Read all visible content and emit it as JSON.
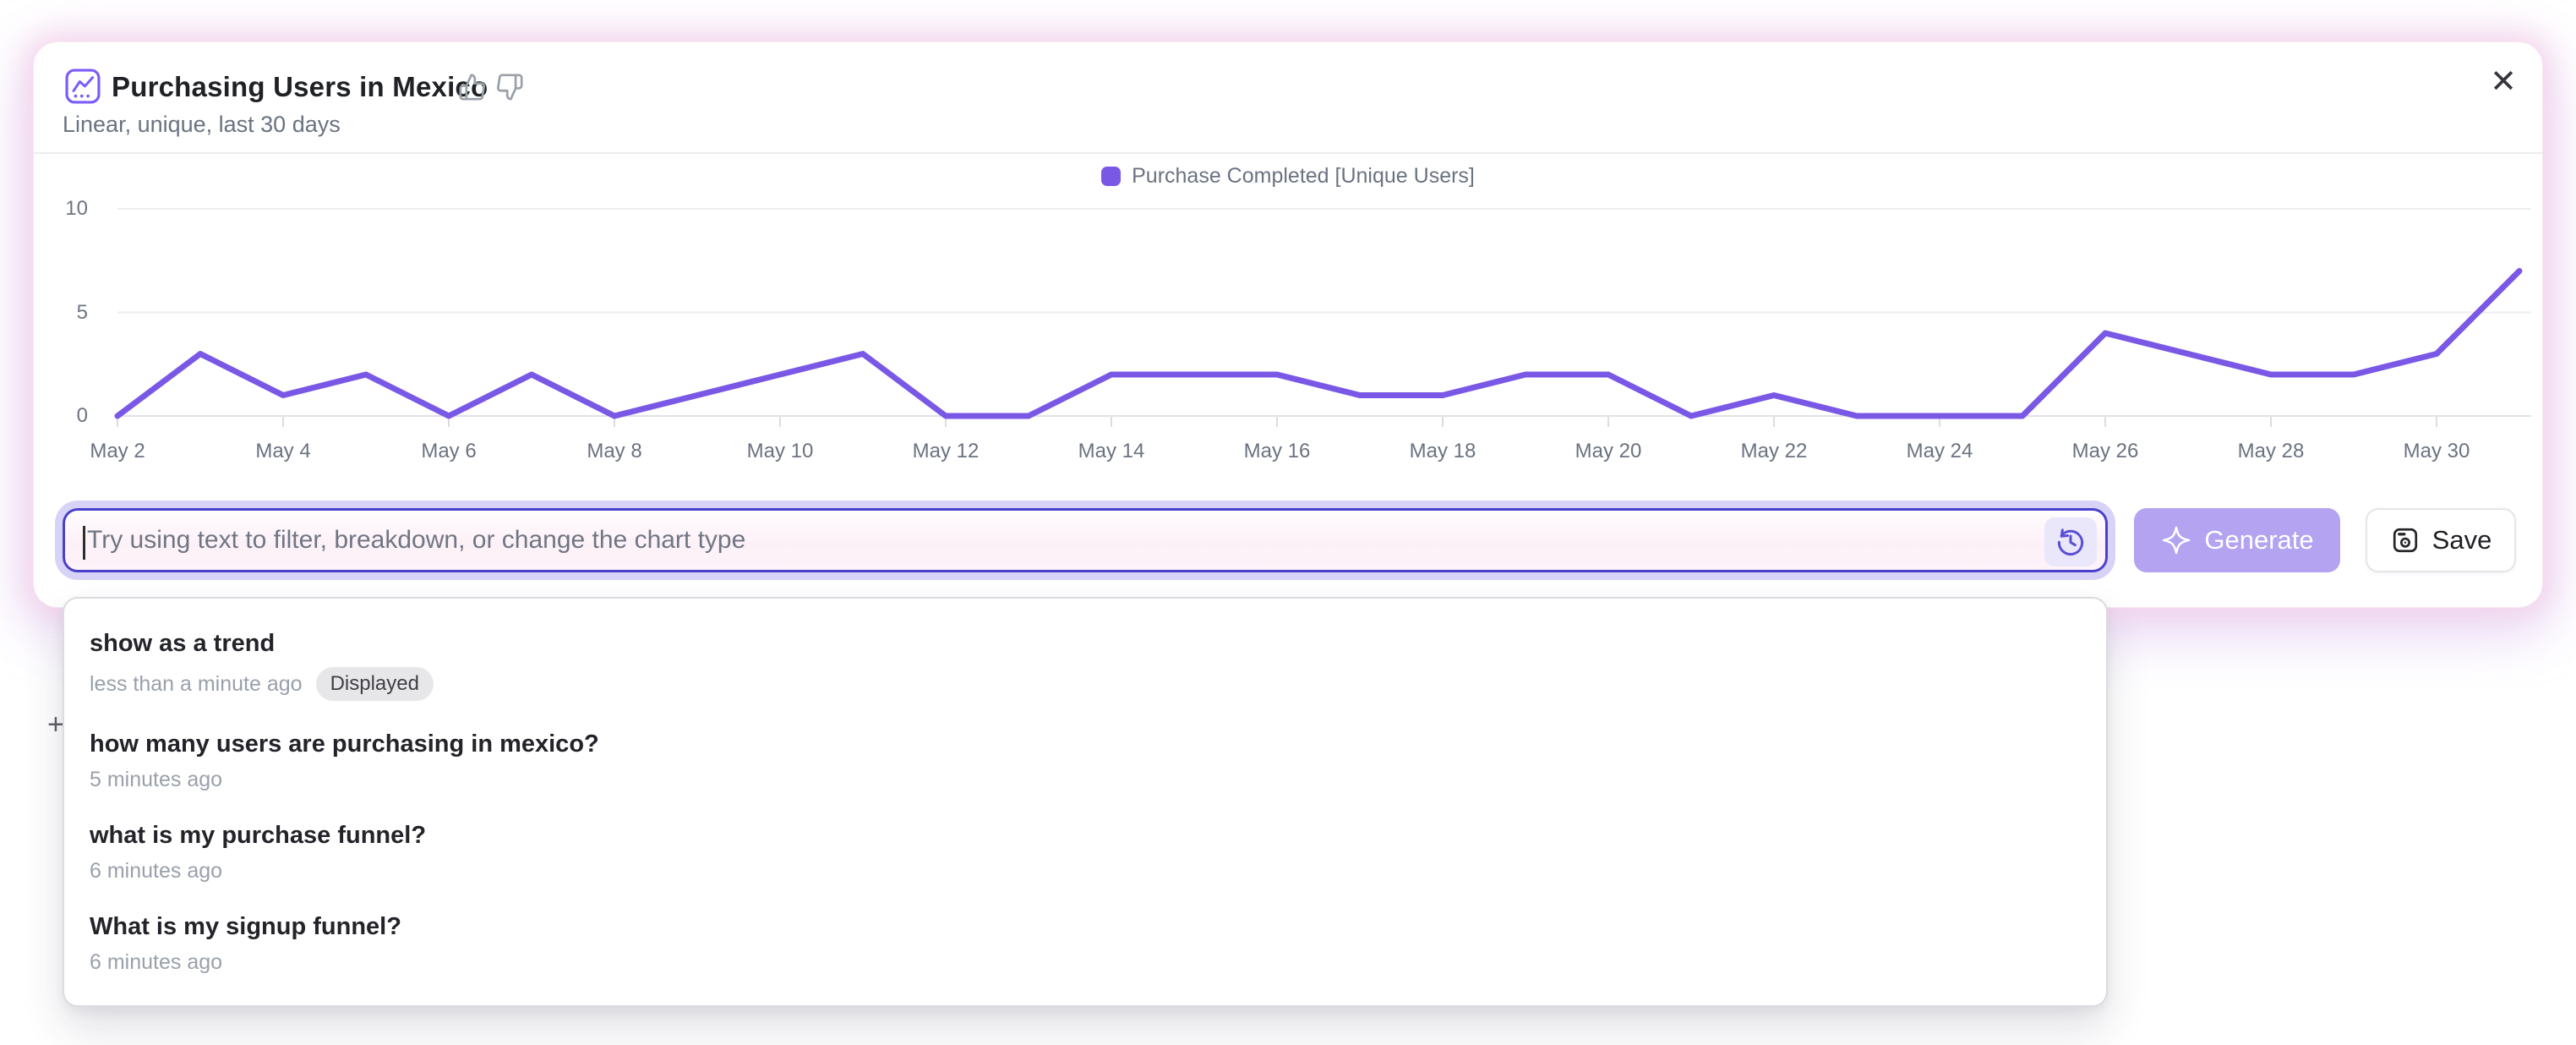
{
  "card": {
    "title": "Purchasing Users in Mexico",
    "subtitle": "Linear, unique, last 30 days",
    "close_icon": "✕"
  },
  "legend": {
    "label": "Purchase Completed [Unique Users]"
  },
  "chart_data": {
    "type": "line",
    "title": "Purchasing Users in Mexico",
    "categories": [
      "May 2",
      "May 3",
      "May 4",
      "May 5",
      "May 6",
      "May 7",
      "May 8",
      "May 9",
      "May 10",
      "May 11",
      "May 12",
      "May 13",
      "May 14",
      "May 15",
      "May 16",
      "May 17",
      "May 18",
      "May 19",
      "May 20",
      "May 21",
      "May 22",
      "May 23",
      "May 24",
      "May 25",
      "May 26",
      "May 27",
      "May 28",
      "May 29",
      "May 30",
      "May 31"
    ],
    "series": [
      {
        "name": "Purchase Completed [Unique Users]",
        "color": "#7a58e6",
        "values": [
          0,
          3,
          1,
          2,
          0,
          2,
          0,
          1,
          2,
          3,
          0,
          0,
          2,
          2,
          2,
          1,
          1,
          2,
          2,
          0,
          1,
          0,
          0,
          0,
          4,
          3,
          2,
          2,
          3,
          7
        ]
      }
    ],
    "x_tick_labels": [
      "May 2",
      "May 4",
      "May 6",
      "May 8",
      "May 10",
      "May 12",
      "May 14",
      "May 16",
      "May 18",
      "May 20",
      "May 22",
      "May 24",
      "May 26",
      "May 28",
      "May 30"
    ],
    "y_ticks": [
      0,
      5,
      10
    ],
    "ylim": [
      0,
      10
    ],
    "grid": "horizontal",
    "legend_position": "top-center"
  },
  "query_bar": {
    "placeholder": "Try using text to filter, breakdown, or change the chart type",
    "value": "",
    "history_icon": "clock-counter-clockwise"
  },
  "actions": {
    "generate_label": "Generate",
    "save_label": "Save"
  },
  "history_dropdown": {
    "items": [
      {
        "query": "show as a trend",
        "time": "less than a minute ago",
        "badge": "Displayed"
      },
      {
        "query": "how many users are purchasing in mexico?",
        "time": "5 minutes ago"
      },
      {
        "query": "what is my purchase funnel?",
        "time": "6 minutes ago"
      },
      {
        "query": "What is my signup funnel?",
        "time": "6 minutes ago"
      }
    ]
  },
  "misc": {
    "plus_fragment": "+"
  },
  "colors": {
    "accent_line": "#7a58e6",
    "input_border": "#4a40ca",
    "input_halo": "#d7d3f6",
    "generate_bg": "#b3a3f0",
    "badge_bg": "#e7e7e9",
    "card_glow_pink": "#f7e3f0"
  }
}
